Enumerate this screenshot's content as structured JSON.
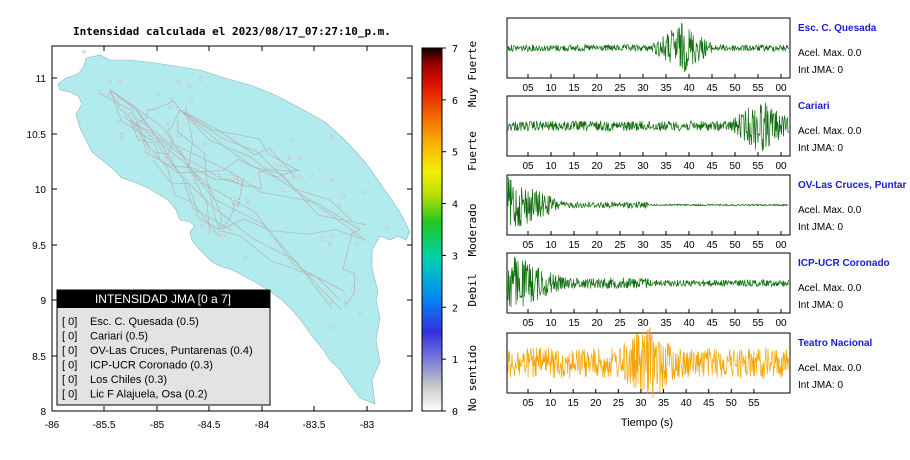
{
  "map": {
    "title": "Intensidad calculada el 2023/08/17_07:27:10_p.m.",
    "lat_ticks": [
      "11",
      "10.5",
      "10",
      "9.5",
      "9",
      "8.5",
      "8"
    ],
    "lon_ticks": [
      "-86",
      "-85.5",
      "-85",
      "-84.5",
      "-84",
      "-83.5",
      "-83"
    ],
    "land_color": "#b2ebed",
    "road_color": "#b7b7b7"
  },
  "colorbar": {
    "ticks": [
      "7",
      "6",
      "5",
      "4",
      "3",
      "2",
      "1",
      "0"
    ],
    "categories": [
      "Muy Fuerte",
      "Fuerte",
      "Moderado",
      "Debil",
      "No sentido"
    ]
  },
  "legend": {
    "title": "INTENSIDAD JMA [0 a 7]",
    "items": [
      {
        "value": "[ 0]",
        "label": "Esc. C. Quesada (0.5)"
      },
      {
        "value": "[ 0]",
        "label": "Cariari (0.5)"
      },
      {
        "value": "[ 0]",
        "label": "OV-Las Cruces, Puntarenas (0.4)"
      },
      {
        "value": "[ 0]",
        "label": "ICP-UCR Coronado (0.3)"
      },
      {
        "value": "[ 0]",
        "label": "Los Chiles (0.3)"
      },
      {
        "value": "[ 0]",
        "label": "Lic F Alajuela, Osa (0.2)"
      }
    ]
  },
  "traces": [
    {
      "name": "Esc. C. Quesada",
      "accel": "Acel. Max. 0.0",
      "jma": "Int JMA: 0",
      "color": "#0d6e0d",
      "ticks": [
        "05",
        "10",
        "15",
        "20",
        "25",
        "30",
        "35",
        "40",
        "45",
        "50",
        "55",
        "00"
      ],
      "burst": 0.62,
      "noise": 0.12
    },
    {
      "name": "Cariari",
      "accel": "Acel. Max. 0.0",
      "jma": "Int JMA: 0",
      "color": "#0d6e0d",
      "ticks": [
        "05",
        "10",
        "15",
        "20",
        "25",
        "30",
        "35",
        "40",
        "45",
        "50",
        "55",
        "00"
      ],
      "burst": 0.9,
      "noise": 0.18
    },
    {
      "name": "OV-Las Cruces, Puntar",
      "accel": "Acel. Max. 0.0",
      "jma": "Int JMA: 0",
      "color": "#0d6e0d",
      "ticks": [
        "05",
        "10",
        "15",
        "20",
        "25",
        "30",
        "35",
        "40",
        "45",
        "50",
        "55",
        "00"
      ],
      "burst": 0.08,
      "noise": 0.03
    },
    {
      "name": "ICP-UCR Coronado",
      "accel": "Acel. Max. 0.0",
      "jma": "Int JMA: 0",
      "color": "#0d6e0d",
      "ticks": [
        "05",
        "10",
        "15",
        "20",
        "25",
        "30",
        "35",
        "40",
        "45",
        "50",
        "55",
        "00"
      ],
      "burst": 0.06,
      "noise": 0.12
    },
    {
      "name": "Teatro Nacional",
      "accel": "Acel. Max. 0.0",
      "jma": "Int JMA: 0",
      "color": "#f5a500",
      "ticks": [
        "05",
        "10",
        "15",
        "20",
        "25",
        "30",
        "35",
        "40",
        "45",
        "50",
        "55"
      ],
      "burst": 0.5,
      "noise": 0.55
    }
  ],
  "xlabel": "Tiempo (s)"
}
